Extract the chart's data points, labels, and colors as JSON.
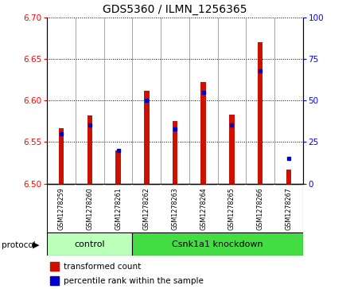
{
  "title": "GDS5360 / ILMN_1256365",
  "samples": [
    "GSM1278259",
    "GSM1278260",
    "GSM1278261",
    "GSM1278262",
    "GSM1278263",
    "GSM1278264",
    "GSM1278265",
    "GSM1278266",
    "GSM1278267"
  ],
  "transformed_count": [
    6.567,
    6.582,
    6.54,
    6.612,
    6.575,
    6.622,
    6.583,
    6.67,
    6.517
  ],
  "percentile_rank": [
    30,
    35,
    20,
    50,
    33,
    55,
    35,
    68,
    15
  ],
  "ylim_left": [
    6.5,
    6.7
  ],
  "ylim_right": [
    0,
    100
  ],
  "yticks_left": [
    6.5,
    6.55,
    6.6,
    6.65,
    6.7
  ],
  "yticks_right": [
    0,
    25,
    50,
    75,
    100
  ],
  "bar_color": "#CC1100",
  "dot_color": "#0000CC",
  "bar_bottom": 6.5,
  "groups": [
    {
      "label": "control",
      "start": 0,
      "end": 3,
      "color": "#BBFFBB"
    },
    {
      "label": "Csnk1a1 knockdown",
      "start": 3,
      "end": 9,
      "color": "#44DD44"
    }
  ],
  "protocol_label": "protocol",
  "plot_bg_color": "#FFFFFF",
  "sample_box_color": "#CCCCCC",
  "figure_bg_color": "#FFFFFF"
}
